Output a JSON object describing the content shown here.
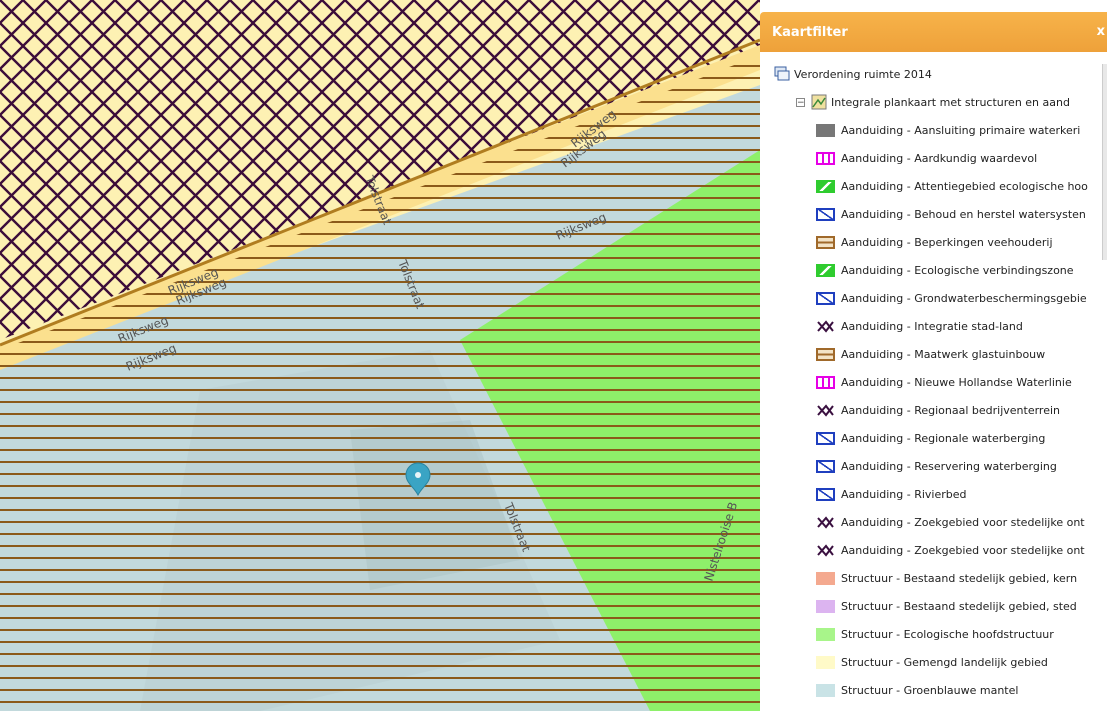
{
  "panel": {
    "title": "Kaartfilter",
    "close": "x",
    "root_label": "Verordening ruimte 2014",
    "sub_label": "Integrale plankaart met structuren en aand",
    "toggle": "−"
  },
  "legend": [
    {
      "label": "Aanduiding - Aansluiting primaire waterkeri",
      "type": "solid",
      "color": "#777777"
    },
    {
      "label": "Aanduiding - Aardkundig waardevol",
      "type": "vbars",
      "color": "#e600e6"
    },
    {
      "label": "Aanduiding - Attentiegebied ecologische hoo",
      "type": "diag-fill",
      "color": "#2fcc2f"
    },
    {
      "label": "Aanduiding - Behoud en herstel watersysten",
      "type": "diag-outline",
      "color": "#1f3fbf"
    },
    {
      "label": "Aanduiding - Beperkingen veehouderij",
      "type": "hbars",
      "color": "#a0692a"
    },
    {
      "label": "Aanduiding - Ecologische verbindingszone",
      "type": "diag-fill",
      "color": "#2fcc2f"
    },
    {
      "label": "Aanduiding - Grondwaterbeschermingsgebie",
      "type": "diag-outline",
      "color": "#1f3fbf"
    },
    {
      "label": "Aanduiding - Integratie stad-land",
      "type": "cross",
      "color": "#3a1040"
    },
    {
      "label": "Aanduiding - Maatwerk glastuinbouw",
      "type": "hbars",
      "color": "#a0692a"
    },
    {
      "label": "Aanduiding - Nieuwe Hollandse Waterlinie",
      "type": "vbars",
      "color": "#e600e6"
    },
    {
      "label": "Aanduiding - Regionaal bedrijventerrein",
      "type": "cross",
      "color": "#3a1040"
    },
    {
      "label": "Aanduiding - Regionale waterberging",
      "type": "diag-outline",
      "color": "#1f3fbf"
    },
    {
      "label": "Aanduiding - Reservering waterberging",
      "type": "diag-outline",
      "color": "#1f3fbf"
    },
    {
      "label": "Aanduiding - Rivierbed",
      "type": "diag-outline",
      "color": "#1f3fbf"
    },
    {
      "label": "Aanduiding - Zoekgebied voor stedelijke ont",
      "type": "cross",
      "color": "#3a1040"
    },
    {
      "label": "Aanduiding - Zoekgebied voor stedelijke ont",
      "type": "cross",
      "color": "#3a1040"
    },
    {
      "label": "Structuur - Bestaand stedelijk gebied, kern",
      "type": "solid",
      "color": "#f4a98f"
    },
    {
      "label": "Structuur - Bestaand stedelijk gebied, sted",
      "type": "solid",
      "color": "#dcb4f0"
    },
    {
      "label": "Structuur - Ecologische hoofdstructuur",
      "type": "solid",
      "color": "#a8f58a"
    },
    {
      "label": "Structuur - Gemengd landelijk gebied",
      "type": "solid",
      "color": "#fffac8"
    },
    {
      "label": "Structuur - Groenblauwe mantel",
      "type": "solid",
      "color": "#c9e3e6"
    }
  ],
  "map": {
    "road_labels": [
      "Rijksweg",
      "Rijksweg",
      "Rijksweg",
      "Rijksweg",
      "Rijksweg",
      "Tolstraat",
      "Tolstraat",
      "Tolstraat",
      "Nistelrooise B",
      "Rijksweg",
      "Rijksweg"
    ],
    "colors": {
      "yellow": "#fdf1b3",
      "crosshatch": "#3c0d3a",
      "bluegrey": "#c2d9dc",
      "green": "#8ef06a",
      "stripes": "#8b5a1a",
      "marker": "#3aa4c4"
    }
  }
}
